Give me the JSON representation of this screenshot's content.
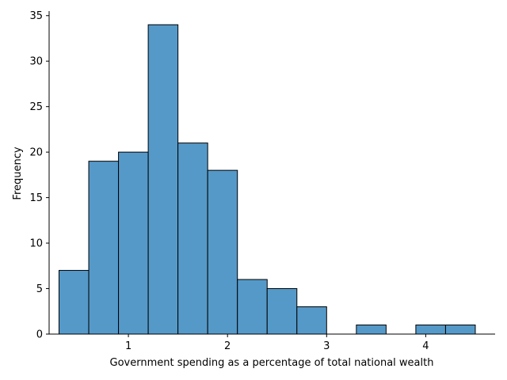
{
  "chart_data": {
    "type": "bar",
    "subtype": "histogram",
    "xlabel": "Government spending as a percentage of total national wealth",
    "ylabel": "Frequency",
    "bin_edges": [
      0.3,
      0.6,
      0.9,
      1.2,
      1.5,
      1.8,
      2.1,
      2.4,
      2.7,
      3.0,
      3.3,
      3.6,
      3.9,
      4.2,
      4.5
    ],
    "values": [
      7,
      19,
      20,
      34,
      21,
      18,
      6,
      5,
      3,
      0,
      1,
      0,
      1,
      1
    ],
    "xlim": [
      0.2,
      4.7
    ],
    "ylim": [
      0,
      35.5
    ],
    "xticks": [
      1,
      2,
      3,
      4
    ],
    "yticks": [
      0,
      5,
      10,
      15,
      20,
      25,
      30,
      35
    ],
    "bar_color": "#5599c9",
    "edge_color": "#000000",
    "grid": false,
    "spines": "left-bottom"
  }
}
